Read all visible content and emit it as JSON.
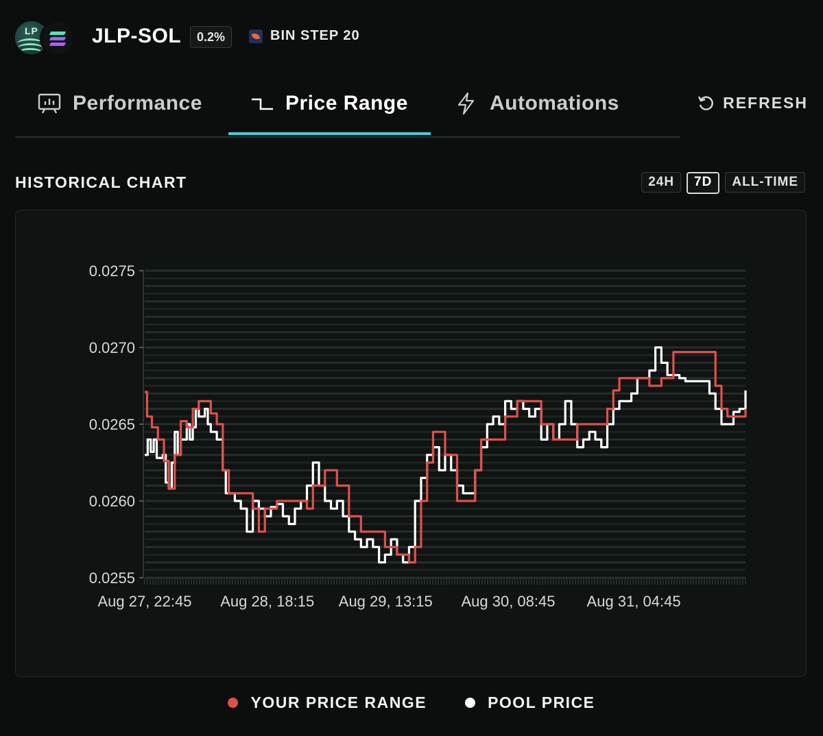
{
  "header": {
    "logo_text": "LP",
    "pair": "JLP-SOL",
    "fee": "0.2%",
    "bin_step": "BIN STEP 20"
  },
  "tabs": [
    {
      "label": "Performance",
      "icon": "chart-board-icon",
      "active": false
    },
    {
      "label": "Price Range",
      "icon": "step-line-icon",
      "active": true
    },
    {
      "label": "Automations",
      "icon": "lightning-icon",
      "active": false
    }
  ],
  "refresh_label": "REFRESH",
  "section": {
    "title": "HISTORICAL CHART"
  },
  "range_buttons": [
    {
      "label": "24H",
      "active": false
    },
    {
      "label": "7D",
      "active": true
    },
    {
      "label": "ALL-TIME",
      "active": false
    }
  ],
  "legend": [
    {
      "label": "YOUR PRICE RANGE",
      "color": "#e0504b"
    },
    {
      "label": "POOL PRICE",
      "color": "#ffffff"
    }
  ],
  "colors": {
    "accent": "#4fc7d8",
    "range": "#e0504b",
    "pool": "#ffffff",
    "background": "#0b0e0d"
  },
  "chart_data": {
    "type": "line",
    "ylim": [
      0.0255,
      0.0275
    ],
    "yticks": [
      "0.0275",
      "0.0270",
      "0.0265",
      "0.0260",
      "0.0255"
    ],
    "xticks": [
      {
        "label": "Aug 27, 22:45",
        "x": 0
      },
      {
        "label": "Aug 28, 18:15",
        "x": 0.204
      },
      {
        "label": "Aug 29, 13:15",
        "x": 0.401
      },
      {
        "label": "Aug 30, 08:45",
        "x": 0.605
      },
      {
        "label": "Aug 31, 04:45",
        "x": 0.814
      }
    ],
    "xrange": [
      0,
      1
    ],
    "series": [
      {
        "name": "YOUR PRICE RANGE",
        "color": "#e0504b",
        "points": [
          [
            0,
            0.02671
          ],
          [
            0.004,
            0.02655
          ],
          [
            0.012,
            0.02648
          ],
          [
            0.022,
            0.0264
          ],
          [
            0.032,
            0.02626
          ],
          [
            0.04,
            0.02608
          ],
          [
            0.05,
            0.0263
          ],
          [
            0.06,
            0.02652
          ],
          [
            0.07,
            0.02648
          ],
          [
            0.08,
            0.0266
          ],
          [
            0.09,
            0.02665
          ],
          [
            0.1,
            0.02665
          ],
          [
            0.11,
            0.02657
          ],
          [
            0.12,
            0.0265
          ],
          [
            0.13,
            0.0262
          ],
          [
            0.14,
            0.02605
          ],
          [
            0.16,
            0.02605
          ],
          [
            0.18,
            0.02595
          ],
          [
            0.19,
            0.0258
          ],
          [
            0.2,
            0.02595
          ],
          [
            0.22,
            0.026
          ],
          [
            0.25,
            0.026
          ],
          [
            0.27,
            0.02595
          ],
          [
            0.28,
            0.0261
          ],
          [
            0.3,
            0.0262
          ],
          [
            0.32,
            0.0261
          ],
          [
            0.34,
            0.0259
          ],
          [
            0.36,
            0.0258
          ],
          [
            0.38,
            0.0258
          ],
          [
            0.4,
            0.0257
          ],
          [
            0.42,
            0.02565
          ],
          [
            0.44,
            0.0256
          ],
          [
            0.45,
            0.0257
          ],
          [
            0.46,
            0.026
          ],
          [
            0.47,
            0.02625
          ],
          [
            0.48,
            0.02645
          ],
          [
            0.5,
            0.0263
          ],
          [
            0.52,
            0.026
          ],
          [
            0.54,
            0.026
          ],
          [
            0.55,
            0.0262
          ],
          [
            0.56,
            0.0264
          ],
          [
            0.58,
            0.0264
          ],
          [
            0.6,
            0.02655
          ],
          [
            0.62,
            0.02665
          ],
          [
            0.65,
            0.02665
          ],
          [
            0.66,
            0.0265
          ],
          [
            0.68,
            0.0264
          ],
          [
            0.7,
            0.0264
          ],
          [
            0.72,
            0.0265
          ],
          [
            0.74,
            0.0265
          ],
          [
            0.76,
            0.0265
          ],
          [
            0.77,
            0.0266
          ],
          [
            0.78,
            0.02672
          ],
          [
            0.79,
            0.0268
          ],
          [
            0.82,
            0.0268
          ],
          [
            0.84,
            0.02675
          ],
          [
            0.86,
            0.0268
          ],
          [
            0.88,
            0.02697
          ],
          [
            0.9,
            0.02697
          ],
          [
            0.92,
            0.02697
          ],
          [
            0.94,
            0.02697
          ],
          [
            0.95,
            0.02675
          ],
          [
            0.96,
            0.0266
          ],
          [
            0.97,
            0.02655
          ],
          [
            0.99,
            0.02655
          ],
          [
            1,
            0.0266
          ]
        ]
      },
      {
        "name": "POOL PRICE",
        "color": "#ffffff",
        "points": [
          [
            0,
            0.0263
          ],
          [
            0.005,
            0.0264
          ],
          [
            0.01,
            0.02632
          ],
          [
            0.015,
            0.0264
          ],
          [
            0.02,
            0.02628
          ],
          [
            0.03,
            0.0263
          ],
          [
            0.035,
            0.02612
          ],
          [
            0.04,
            0.02608
          ],
          [
            0.045,
            0.02625
          ],
          [
            0.05,
            0.02645
          ],
          [
            0.055,
            0.0263
          ],
          [
            0.06,
            0.0264
          ],
          [
            0.07,
            0.0265
          ],
          [
            0.075,
            0.0264
          ],
          [
            0.08,
            0.02648
          ],
          [
            0.085,
            0.0266
          ],
          [
            0.09,
            0.02655
          ],
          [
            0.1,
            0.0266
          ],
          [
            0.105,
            0.0265
          ],
          [
            0.11,
            0.02645
          ],
          [
            0.12,
            0.0264
          ],
          [
            0.13,
            0.0262
          ],
          [
            0.135,
            0.02605
          ],
          [
            0.14,
            0.02605
          ],
          [
            0.15,
            0.026
          ],
          [
            0.16,
            0.02595
          ],
          [
            0.17,
            0.0258
          ],
          [
            0.18,
            0.026
          ],
          [
            0.19,
            0.02595
          ],
          [
            0.2,
            0.0259
          ],
          [
            0.21,
            0.02596
          ],
          [
            0.22,
            0.02598
          ],
          [
            0.23,
            0.0259
          ],
          [
            0.24,
            0.02585
          ],
          [
            0.25,
            0.02595
          ],
          [
            0.26,
            0.026
          ],
          [
            0.27,
            0.0261
          ],
          [
            0.28,
            0.02625
          ],
          [
            0.29,
            0.0261
          ],
          [
            0.3,
            0.026
          ],
          [
            0.31,
            0.02595
          ],
          [
            0.32,
            0.026
          ],
          [
            0.33,
            0.0259
          ],
          [
            0.34,
            0.0258
          ],
          [
            0.35,
            0.02575
          ],
          [
            0.36,
            0.0257
          ],
          [
            0.37,
            0.02575
          ],
          [
            0.38,
            0.0257
          ],
          [
            0.39,
            0.0256
          ],
          [
            0.4,
            0.02565
          ],
          [
            0.41,
            0.02575
          ],
          [
            0.42,
            0.02565
          ],
          [
            0.43,
            0.0256
          ],
          [
            0.44,
            0.0257
          ],
          [
            0.45,
            0.026
          ],
          [
            0.46,
            0.02615
          ],
          [
            0.47,
            0.0263
          ],
          [
            0.48,
            0.02635
          ],
          [
            0.49,
            0.0262
          ],
          [
            0.5,
            0.0263
          ],
          [
            0.51,
            0.0262
          ],
          [
            0.52,
            0.0261
          ],
          [
            0.53,
            0.02605
          ],
          [
            0.54,
            0.02605
          ],
          [
            0.55,
            0.0262
          ],
          [
            0.56,
            0.02635
          ],
          [
            0.57,
            0.0265
          ],
          [
            0.58,
            0.02655
          ],
          [
            0.59,
            0.0265
          ],
          [
            0.6,
            0.02665
          ],
          [
            0.61,
            0.0266
          ],
          [
            0.62,
            0.02665
          ],
          [
            0.63,
            0.0266
          ],
          [
            0.64,
            0.02655
          ],
          [
            0.65,
            0.0266
          ],
          [
            0.66,
            0.0264
          ],
          [
            0.67,
            0.0265
          ],
          [
            0.68,
            0.0264
          ],
          [
            0.69,
            0.0265
          ],
          [
            0.7,
            0.02665
          ],
          [
            0.71,
            0.0265
          ],
          [
            0.72,
            0.02635
          ],
          [
            0.73,
            0.0264
          ],
          [
            0.74,
            0.02645
          ],
          [
            0.75,
            0.0264
          ],
          [
            0.76,
            0.02635
          ],
          [
            0.77,
            0.0265
          ],
          [
            0.78,
            0.0266
          ],
          [
            0.79,
            0.02665
          ],
          [
            0.8,
            0.02665
          ],
          [
            0.81,
            0.0267
          ],
          [
            0.82,
            0.0268
          ],
          [
            0.83,
            0.0268
          ],
          [
            0.84,
            0.02685
          ],
          [
            0.85,
            0.027
          ],
          [
            0.86,
            0.0269
          ],
          [
            0.87,
            0.02682
          ],
          [
            0.88,
            0.02682
          ],
          [
            0.89,
            0.0268
          ],
          [
            0.9,
            0.02678
          ],
          [
            0.91,
            0.02678
          ],
          [
            0.92,
            0.02678
          ],
          [
            0.93,
            0.02678
          ],
          [
            0.94,
            0.0267
          ],
          [
            0.95,
            0.0266
          ],
          [
            0.96,
            0.0265
          ],
          [
            0.97,
            0.0265
          ],
          [
            0.98,
            0.02658
          ],
          [
            0.99,
            0.0266
          ],
          [
            1,
            0.02672
          ]
        ]
      }
    ]
  }
}
